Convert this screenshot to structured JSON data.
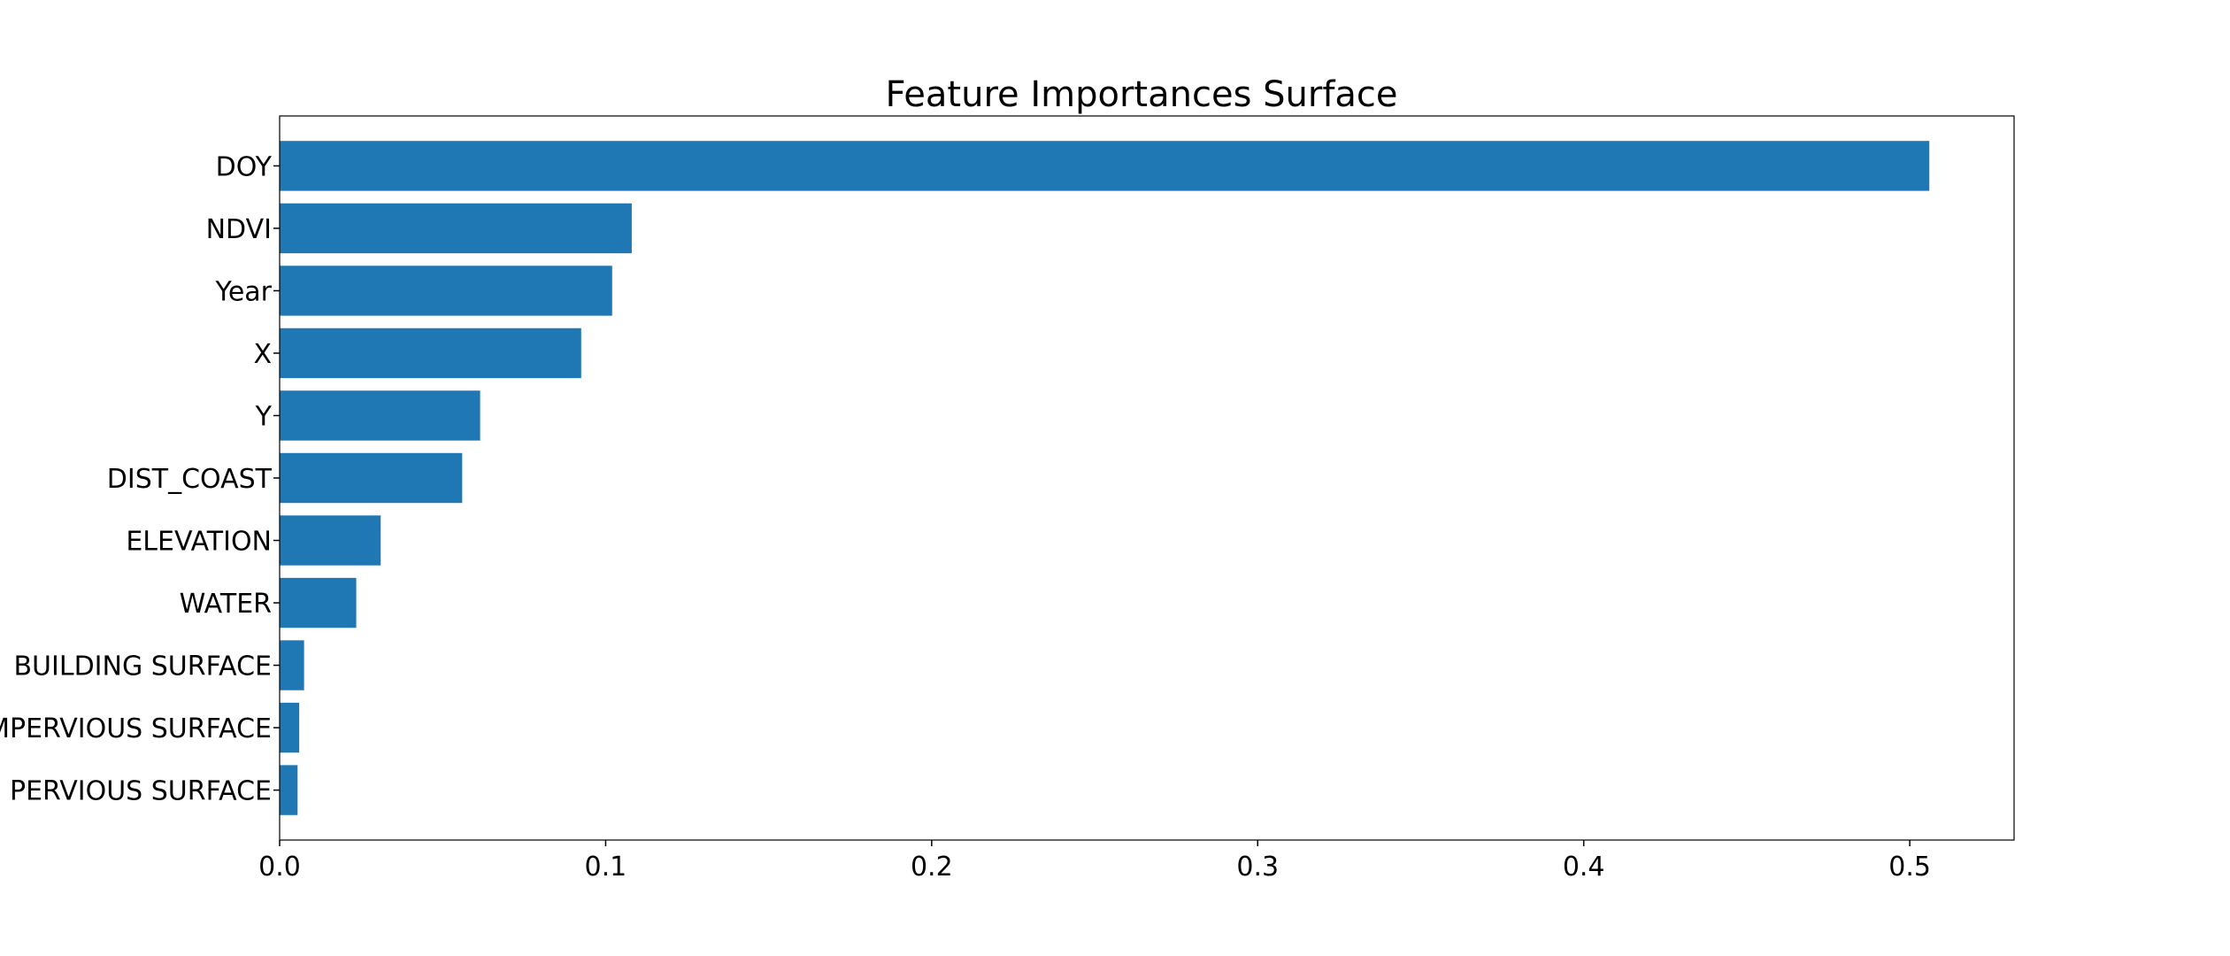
{
  "chart_data": {
    "type": "bar",
    "orientation": "horizontal",
    "title": "Feature Importances Surface",
    "xlabel": "",
    "ylabel": "",
    "categories": [
      "DOY",
      "NDVI",
      "Year",
      "X",
      "Y",
      "DIST_COAST",
      "ELEVATION",
      "WATER",
      "BUILDING SURFACE",
      "IMPERVIOUS SURFACE",
      "PERVIOUS SURFACE"
    ],
    "values": [
      0.506,
      0.108,
      0.102,
      0.0925,
      0.0615,
      0.056,
      0.031,
      0.0235,
      0.0075,
      0.006,
      0.0055
    ],
    "xlim": [
      0,
      0.532
    ],
    "xticks": [
      0.0,
      0.1,
      0.2,
      0.3,
      0.4,
      0.5
    ],
    "xtick_labels": [
      "0.0",
      "0.1",
      "0.2",
      "0.3",
      "0.4",
      "0.5"
    ],
    "bar_color": "#1f77b4",
    "grid": false,
    "legend": false
  }
}
